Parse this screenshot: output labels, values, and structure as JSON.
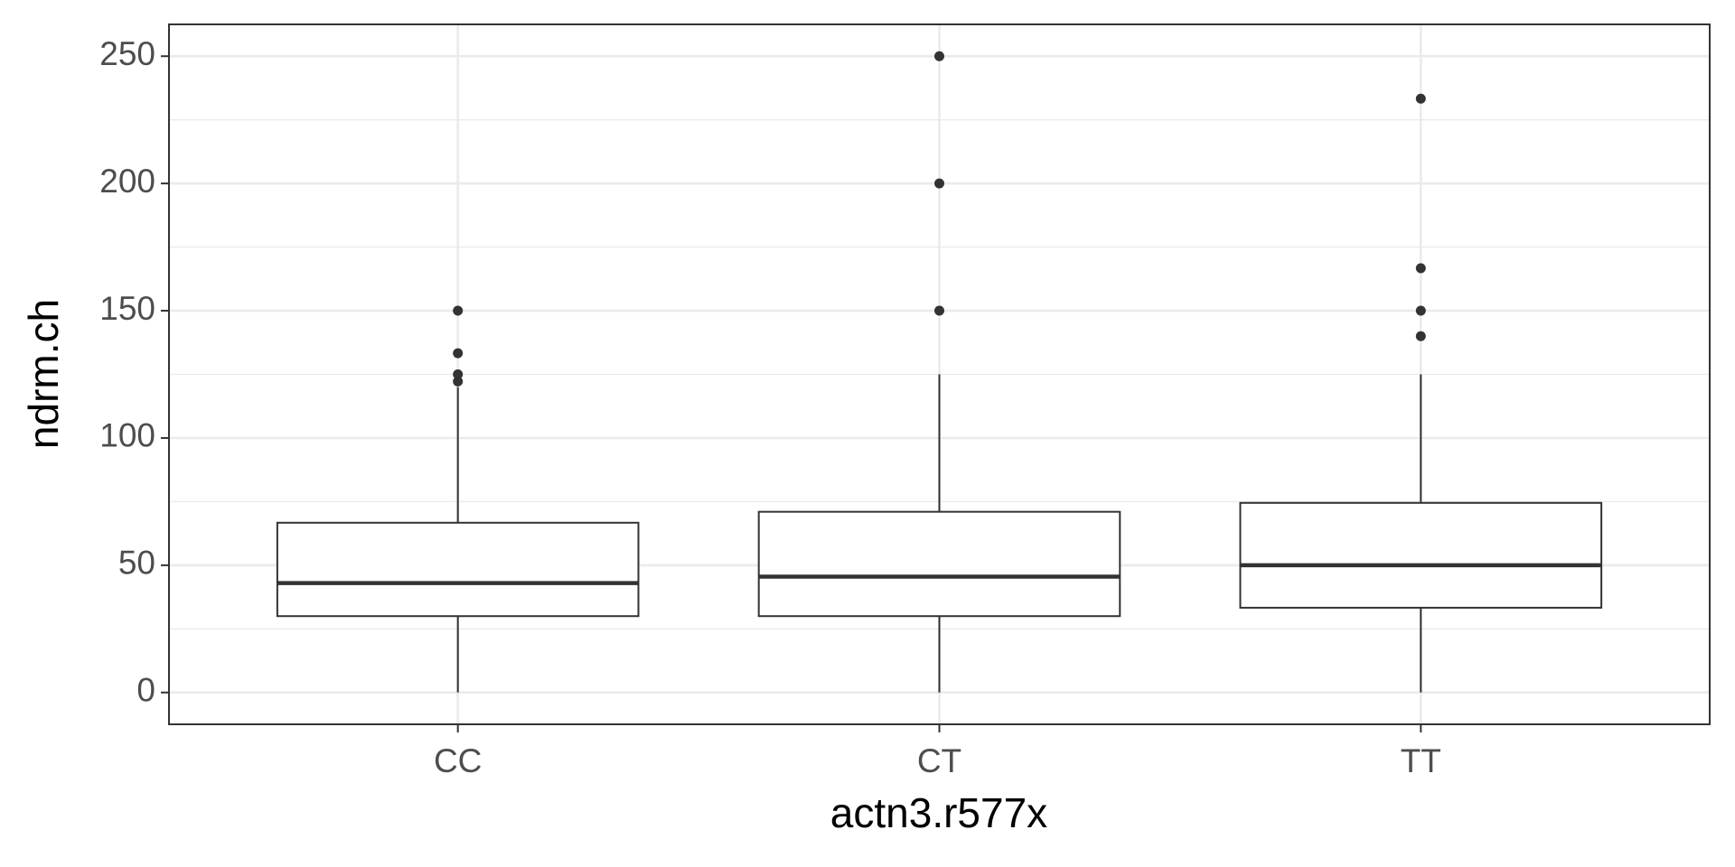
{
  "chart_data": {
    "type": "boxplot",
    "x_label": "actn3.r577x",
    "y_label": "ndrm.ch",
    "categories": [
      "CC",
      "CT",
      "TT"
    ],
    "boxes": [
      {
        "min": 0,
        "q1": 30,
        "median": 43,
        "q3": 66.7,
        "max": 120,
        "outliers": [
          122.2,
          125,
          133.3,
          150
        ]
      },
      {
        "min": 0,
        "q1": 30,
        "median": 45.5,
        "q3": 71,
        "max": 125,
        "outliers": [
          150,
          200,
          250
        ]
      },
      {
        "min": 0,
        "q1": 33.3,
        "median": 50,
        "q3": 74.5,
        "max": 125,
        "outliers": [
          140,
          150,
          166.7,
          233.3
        ]
      }
    ],
    "color": "#333333",
    "fill": "#ffffff",
    "ylim": [
      -12.5,
      262.5
    ],
    "yticks": [
      0,
      50,
      100,
      150,
      200,
      250
    ],
    "yminorticks": [
      25,
      75,
      125,
      175,
      225
    ],
    "grid": true
  }
}
